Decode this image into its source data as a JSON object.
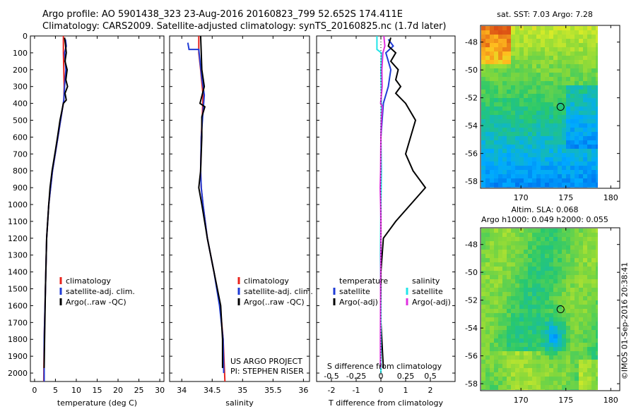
{
  "header": {
    "line1": "Argo profile: AO 5901438_323 23-Aug-2016 20160823_799 52.652S 174.411E",
    "line2": "Climatology: CARS2009. Satellite-adjusted climatology: synTS_20160825.nc (1.7d later)"
  },
  "footer": {
    "project_line1": "US ARGO PROJECT",
    "project_line2": "PI: STEPHEN RISER",
    "vertical_label": "©IMOS 01-Sep-2016 20:38:41"
  },
  "colors": {
    "climatology": "#e8231c",
    "satellite_adj": "#1f3bd6",
    "argo": "#000000",
    "salinity_satellite": "#22e5e8",
    "salinity_argo": "#e030e0"
  },
  "chart_data": [
    {
      "type": "line",
      "id": "temperature",
      "xlabel": "temperature (deg C)",
      "ylabel": "",
      "xlim": [
        -1,
        31
      ],
      "ylim": [
        2050,
        0
      ],
      "xticks": [
        "0",
        "5",
        "10",
        "15",
        "20",
        "25",
        "30"
      ],
      "xtick_values": [
        0,
        5,
        10,
        15,
        20,
        25,
        30
      ],
      "yticks": [
        "0",
        "100",
        "200",
        "300",
        "400",
        "500",
        "600",
        "700",
        "800",
        "900",
        "1000",
        "1100",
        "1200",
        "1300",
        "1400",
        "1500",
        "1600",
        "1700",
        "1800",
        "1900",
        "2000"
      ],
      "ytick_values": [
        0,
        100,
        200,
        300,
        400,
        500,
        600,
        700,
        800,
        900,
        1000,
        1100,
        1200,
        1300,
        1400,
        1500,
        1600,
        1700,
        1800,
        1900,
        2000
      ],
      "legend": [
        "climatology",
        "satellite-adj. clim.",
        "Argo(..raw -QC)"
      ],
      "series": [
        {
          "name": "climatology",
          "color": "#e8231c",
          "points": [
            [
              6.9,
              0
            ],
            [
              6.9,
              100
            ],
            [
              7.0,
              200
            ],
            [
              7.1,
              300
            ],
            [
              7.0,
              380
            ],
            [
              5.6,
              600
            ],
            [
              4.3,
              800
            ],
            [
              3.4,
              1000
            ],
            [
              2.9,
              1200
            ],
            [
              2.6,
              1500
            ],
            [
              2.3,
              1800
            ],
            [
              2.2,
              2050
            ]
          ]
        },
        {
          "name": "satellite-adj. clim.",
          "color": "#1f3bd6",
          "points": [
            [
              7.4,
              20
            ],
            [
              7.6,
              60
            ],
            [
              7.2,
              100
            ],
            [
              7.5,
              200
            ],
            [
              7.2,
              300
            ],
            [
              7.0,
              380
            ],
            [
              5.6,
              600
            ],
            [
              4.3,
              800
            ],
            [
              3.4,
              1000
            ],
            [
              2.9,
              1200
            ],
            [
              2.6,
              1500
            ],
            [
              2.3,
              1800
            ],
            [
              2.3,
              2050
            ]
          ]
        },
        {
          "name": "Argo(..raw -QC)",
          "color": "#000000",
          "points": [
            [
              7.2,
              10
            ],
            [
              7.4,
              50
            ],
            [
              7.6,
              100
            ],
            [
              7.3,
              150
            ],
            [
              7.8,
              200
            ],
            [
              7.5,
              260
            ],
            [
              7.9,
              300
            ],
            [
              7.3,
              340
            ],
            [
              7.6,
              380
            ],
            [
              6.9,
              400
            ],
            [
              6.1,
              500
            ],
            [
              5.5,
              600
            ],
            [
              5.0,
              680
            ],
            [
              4.2,
              800
            ],
            [
              3.7,
              900
            ],
            [
              3.4,
              1000
            ],
            [
              2.9,
              1200
            ],
            [
              2.6,
              1500
            ],
            [
              2.4,
              1800
            ],
            [
              2.3,
              1970
            ]
          ]
        }
      ]
    },
    {
      "type": "line",
      "id": "salinity",
      "xlabel": "salinity",
      "ylabel": "",
      "xlim": [
        33.8,
        36.1
      ],
      "ylim": [
        2050,
        0
      ],
      "xticks": [
        "34",
        "34.5",
        "35",
        "35.5",
        "36"
      ],
      "xtick_values": [
        34,
        34.5,
        35,
        35.5,
        36
      ],
      "legend": [
        "climatology",
        "satellite-adj. clim.",
        "Argo(..raw -QC)"
      ],
      "series": [
        {
          "name": "climatology",
          "color": "#e8231c",
          "points": [
            [
              34.28,
              0
            ],
            [
              34.28,
              100
            ],
            [
              34.31,
              200
            ],
            [
              34.35,
              350
            ],
            [
              34.34,
              450
            ],
            [
              34.32,
              600
            ],
            [
              34.31,
              800
            ],
            [
              34.32,
              900
            ],
            [
              34.35,
              1000
            ],
            [
              34.42,
              1200
            ],
            [
              34.53,
              1400
            ],
            [
              34.63,
              1600
            ],
            [
              34.68,
              1800
            ],
            [
              34.71,
              2050
            ]
          ]
        },
        {
          "name": "satellite-adj. clim.",
          "color": "#1f3bd6",
          "points": [
            [
              34.1,
              40
            ],
            [
              34.12,
              80
            ],
            [
              34.28,
              80
            ],
            [
              34.3,
              150
            ],
            [
              34.33,
              250
            ],
            [
              34.37,
              350
            ],
            [
              34.35,
              450
            ],
            [
              34.32,
              600
            ],
            [
              34.31,
              800
            ],
            [
              34.32,
              900
            ],
            [
              34.35,
              1000
            ],
            [
              34.42,
              1200
            ],
            [
              34.53,
              1400
            ],
            [
              34.62,
              1600
            ],
            [
              34.68,
              1800
            ],
            [
              34.69,
              2000
            ]
          ]
        },
        {
          "name": "Argo(..raw -QC)",
          "color": "#000000",
          "points": [
            [
              34.31,
              0
            ],
            [
              34.32,
              100
            ],
            [
              34.33,
              200
            ],
            [
              34.37,
              300
            ],
            [
              34.3,
              400
            ],
            [
              34.38,
              420
            ],
            [
              34.33,
              480
            ],
            [
              34.33,
              600
            ],
            [
              34.31,
              800
            ],
            [
              34.28,
              900
            ],
            [
              34.33,
              1000
            ],
            [
              34.42,
              1200
            ],
            [
              34.53,
              1400
            ],
            [
              34.64,
              1600
            ],
            [
              34.67,
              1800
            ],
            [
              34.67,
              1970
            ]
          ]
        }
      ]
    },
    {
      "type": "line",
      "id": "difference",
      "xlabel": "T difference from climatology",
      "xlabel2": "S difference from climatology",
      "xlim": [
        -2.6,
        3.0
      ],
      "ylim": [
        2050,
        0
      ],
      "xticks": [
        "-2",
        "-1",
        "0",
        "1",
        "2"
      ],
      "xtick_values": [
        -2,
        -1,
        0,
        1,
        2
      ],
      "xticks2": [
        "-0.5",
        "-0.25",
        "0",
        "0.25",
        "0.5"
      ],
      "xtick2_values": [
        -0.5,
        -0.25,
        0,
        0.25,
        0.5
      ],
      "legend_title_left": "temperature",
      "legend_title_right": "salinity",
      "legend": [
        "satellite",
        "Argo(-adj)",
        "satellite",
        "Argo(-adj)"
      ],
      "series": [
        {
          "name": "temperature satellite",
          "color": "#1f3bd6",
          "points": [
            [
              0.3,
              20
            ],
            [
              0.5,
              60
            ],
            [
              0.2,
              100
            ],
            [
              0.4,
              200
            ],
            [
              0.3,
              300
            ],
            [
              0.1,
              400
            ],
            [
              0.0,
              600
            ],
            [
              0.0,
              900
            ],
            [
              0.0,
              1200
            ],
            [
              0.0,
              2000
            ]
          ]
        },
        {
          "name": "temperature Argo(-adj)",
          "color": "#000000",
          "points": [
            [
              0.4,
              10
            ],
            [
              0.3,
              60
            ],
            [
              0.6,
              100
            ],
            [
              0.4,
              150
            ],
            [
              0.7,
              200
            ],
            [
              0.6,
              260
            ],
            [
              0.8,
              300
            ],
            [
              0.6,
              340
            ],
            [
              1.0,
              400
            ],
            [
              1.4,
              500
            ],
            [
              1.2,
              600
            ],
            [
              1.0,
              700
            ],
            [
              1.3,
              800
            ],
            [
              1.8,
              900
            ],
            [
              1.2,
              1000
            ],
            [
              0.6,
              1100
            ],
            [
              0.1,
              1200
            ],
            [
              0.0,
              1400
            ],
            [
              0.0,
              1700
            ],
            [
              0.1,
              1970
            ]
          ]
        },
        {
          "name": "salinity satellite",
          "color": "#22e5e8",
          "points": [
            [
              -0.16,
              0
            ],
            [
              -0.16,
              80
            ],
            [
              0.02,
              100
            ],
            [
              0.0,
              200
            ],
            [
              0.02,
              400
            ],
            [
              0.0,
              600
            ],
            [
              0.02,
              800
            ],
            [
              0.0,
              1000
            ],
            [
              -0.02,
              1300
            ],
            [
              0.0,
              1600
            ],
            [
              0.0,
              2000
            ]
          ]
        },
        {
          "name": "salinity Argo(-adj)",
          "color": "#e030e0",
          "points": [
            [
              0.12,
              0
            ],
            [
              0.16,
              60
            ],
            [
              0.08,
              100
            ],
            [
              0.04,
              200
            ],
            [
              0.05,
              300
            ],
            [
              -0.01,
              400
            ],
            [
              0.06,
              420
            ],
            [
              0.02,
              500
            ],
            [
              0.0,
              600
            ],
            [
              -0.01,
              800
            ],
            [
              -0.03,
              900
            ],
            [
              -0.01,
              1000
            ],
            [
              0.0,
              1100
            ],
            [
              0.0,
              1200
            ],
            [
              -0.01,
              1500
            ],
            [
              -0.02,
              1800
            ],
            [
              -0.02,
              1970
            ]
          ]
        }
      ]
    },
    {
      "type": "heatmap",
      "id": "sst_map",
      "title": "sat. SST: 7.03 Argo: 7.28",
      "xticks": [
        "170",
        "175",
        "180"
      ],
      "xtick_values": [
        170,
        175,
        180
      ],
      "yticks": [
        "-48",
        "-50",
        "-52",
        "-54",
        "-56",
        "-58"
      ],
      "ytick_values": [
        -48,
        -50,
        -52,
        -54,
        -56,
        -58
      ],
      "xlim": [
        165.5,
        181
      ],
      "ylim": [
        -58.5,
        -46.8
      ],
      "marker": {
        "lon": 174.411,
        "lat": -52.652
      }
    },
    {
      "type": "heatmap",
      "id": "sla_map",
      "title": "Altim. SLA: 0.068",
      "subtitle": "Argo h1000: 0.049 h2000: 0.055",
      "xticks": [
        "170",
        "175",
        "180"
      ],
      "xtick_values": [
        170,
        175,
        180
      ],
      "yticks": [
        "-48",
        "-50",
        "-52",
        "-54",
        "-56",
        "-58"
      ],
      "ytick_values": [
        -48,
        -50,
        -52,
        -54,
        -56,
        -58
      ],
      "xlim": [
        165.5,
        181
      ],
      "ylim": [
        -58.5,
        -46.8
      ],
      "marker": {
        "lon": 174.411,
        "lat": -52.652
      }
    }
  ]
}
